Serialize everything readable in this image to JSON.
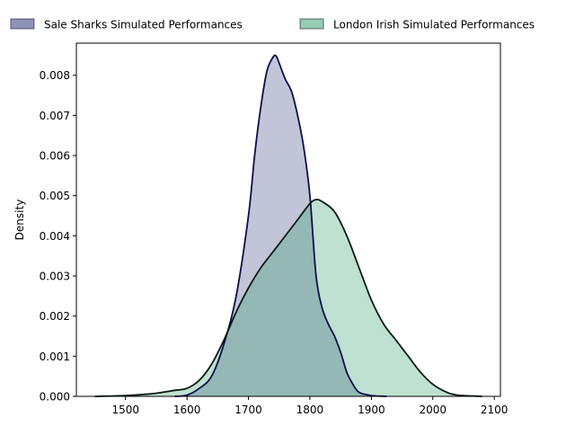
{
  "chart_data": {
    "type": "area",
    "title": "",
    "xlabel": "",
    "ylabel": "Density",
    "xlim": [
      1420,
      2110
    ],
    "ylim": [
      0,
      0.0088
    ],
    "x_ticks": [
      1500,
      1600,
      1700,
      1800,
      1900,
      2000,
      2100
    ],
    "x_tick_labels": [
      "1500",
      "1600",
      "1700",
      "1800",
      "1900",
      "2000",
      "2100"
    ],
    "y_ticks": [
      0,
      0.001,
      0.002,
      0.003,
      0.004,
      0.005,
      0.006,
      0.007,
      0.008
    ],
    "y_tick_labels": [
      "0.000",
      "0.001",
      "0.002",
      "0.003",
      "0.004",
      "0.005",
      "0.006",
      "0.007",
      "0.008"
    ],
    "grid": false,
    "legend_position": "top-center, above plot",
    "series": [
      {
        "name": "Sale Sharks Simulated Performances",
        "fill": "#1a2a6c",
        "fill_opacity": 0.27,
        "line": "#0a0f4a",
        "points": [
          [
            1580,
            0
          ],
          [
            1600,
            3e-05
          ],
          [
            1620,
            0.0002
          ],
          [
            1640,
            0.0005
          ],
          [
            1660,
            0.0013
          ],
          [
            1680,
            0.0025
          ],
          [
            1700,
            0.0045
          ],
          [
            1710,
            0.006
          ],
          [
            1720,
            0.0072
          ],
          [
            1730,
            0.0081
          ],
          [
            1740,
            0.00845
          ],
          [
            1745,
            0.00848
          ],
          [
            1750,
            0.0083
          ],
          [
            1760,
            0.0079
          ],
          [
            1770,
            0.0076
          ],
          [
            1780,
            0.007
          ],
          [
            1790,
            0.0062
          ],
          [
            1800,
            0.005
          ],
          [
            1810,
            0.003
          ],
          [
            1820,
            0.0022
          ],
          [
            1830,
            0.0018
          ],
          [
            1840,
            0.0015
          ],
          [
            1850,
            0.0011
          ],
          [
            1860,
            0.0006
          ],
          [
            1870,
            0.0003
          ],
          [
            1880,
            0.0001
          ],
          [
            1900,
            2e-05
          ],
          [
            1925,
            0
          ]
        ]
      },
      {
        "name": "London Irish Simulated Performances",
        "fill": "#2a9a6a",
        "fill_opacity": 0.3,
        "line": "#0a1a12",
        "points": [
          [
            1450,
            0
          ],
          [
            1500,
            2e-05
          ],
          [
            1540,
            6e-05
          ],
          [
            1560,
            0.0001
          ],
          [
            1580,
            0.00015
          ],
          [
            1600,
            0.0002
          ],
          [
            1620,
            0.0004
          ],
          [
            1640,
            0.0008
          ],
          [
            1660,
            0.0014
          ],
          [
            1680,
            0.0021
          ],
          [
            1700,
            0.0027
          ],
          [
            1720,
            0.0032
          ],
          [
            1740,
            0.0036
          ],
          [
            1760,
            0.004
          ],
          [
            1780,
            0.0044
          ],
          [
            1800,
            0.0048
          ],
          [
            1810,
            0.0049
          ],
          [
            1820,
            0.00485
          ],
          [
            1840,
            0.0046
          ],
          [
            1860,
            0.004
          ],
          [
            1880,
            0.0032
          ],
          [
            1900,
            0.0024
          ],
          [
            1920,
            0.0018
          ],
          [
            1940,
            0.0014
          ],
          [
            1960,
            0.001
          ],
          [
            1980,
            0.0006
          ],
          [
            2000,
            0.0003
          ],
          [
            2020,
            0.00012
          ],
          [
            2040,
            3e-05
          ],
          [
            2080,
            0
          ]
        ]
      }
    ]
  }
}
